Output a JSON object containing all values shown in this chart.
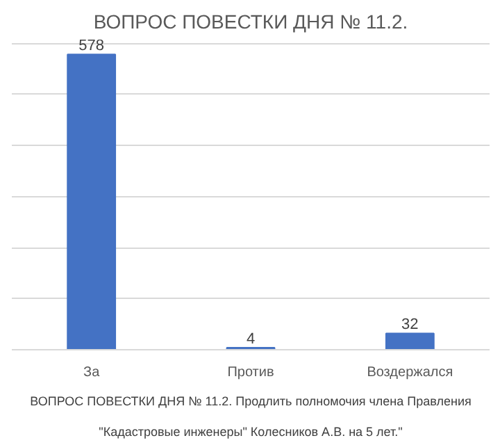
{
  "chart_data": {
    "type": "bar",
    "title": "ВОПРОС ПОВЕСТКИ ДНЯ № 11.2.",
    "categories": [
      "За",
      "Против",
      "Воздержался"
    ],
    "values": [
      578,
      4,
      32
    ],
    "color": "#4472c4",
    "grid": "y",
    "data_labels": true,
    "tick_labels": "x",
    "annotations": [
      "ВОПРОС ПОВЕСТКИ ДНЯ № 11.2. Продлить полномочия члена Правления",
      "\"Кадастровые инженеры\" Колесников А.В. на 5 лет.\""
    ]
  }
}
